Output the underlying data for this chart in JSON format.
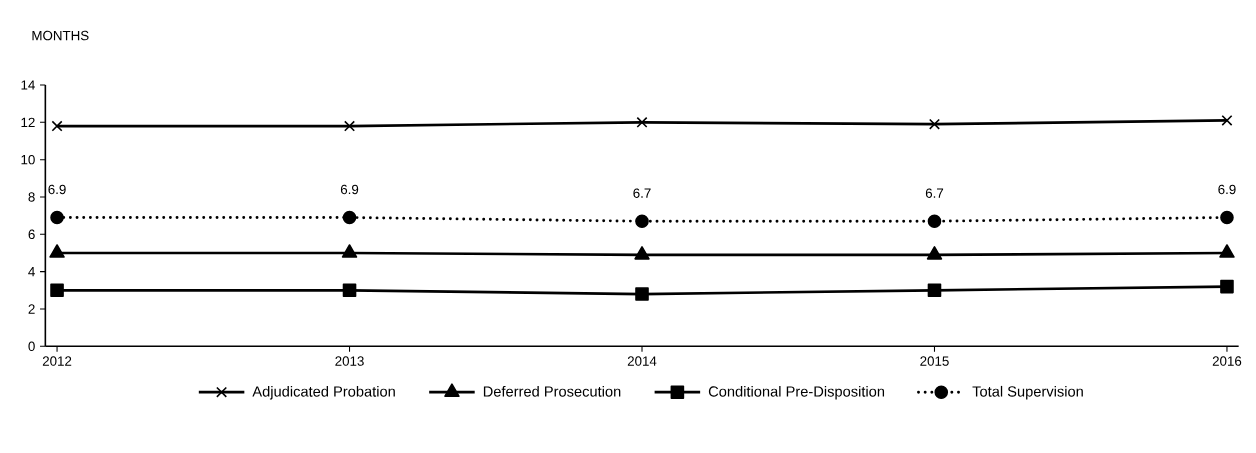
{
  "chart_data": {
    "type": "line",
    "ylabel": "MONTHS",
    "x": [
      2012,
      2013,
      2014,
      2015,
      2016
    ],
    "xlim": [
      2011.96,
      2016.04
    ],
    "xticks": [
      2012,
      2013,
      2014,
      2015,
      2016
    ],
    "ylim": [
      0,
      14
    ],
    "yticks": [
      0,
      2,
      4,
      6,
      8,
      10,
      12,
      14
    ],
    "grid": false,
    "legend": "bottom",
    "series": [
      {
        "name": "Adjudicated Probation",
        "color": "#000000",
        "marker": "cross",
        "line_style": "solid",
        "values": [
          11.8,
          11.8,
          12.0,
          11.9,
          12.1
        ]
      },
      {
        "name": "Deferred Prosecution",
        "color": "#000000",
        "marker": "triangle",
        "line_style": "solid",
        "values": [
          5.0,
          5.0,
          4.9,
          4.9,
          5.0
        ]
      },
      {
        "name": "Conditional Pre-Disposition",
        "color": "#000000",
        "marker": "square",
        "line_style": "solid",
        "values": [
          3.0,
          3.0,
          2.8,
          3.0,
          3.2
        ]
      },
      {
        "name": "Total Supervision",
        "color": "#000000",
        "marker": "circle",
        "line_style": "dotted",
        "values": [
          6.9,
          6.9,
          6.7,
          6.7,
          6.9
        ],
        "value_labels": [
          "6.9",
          "6.9",
          "6.7",
          "6.7",
          "6.9"
        ]
      }
    ]
  }
}
